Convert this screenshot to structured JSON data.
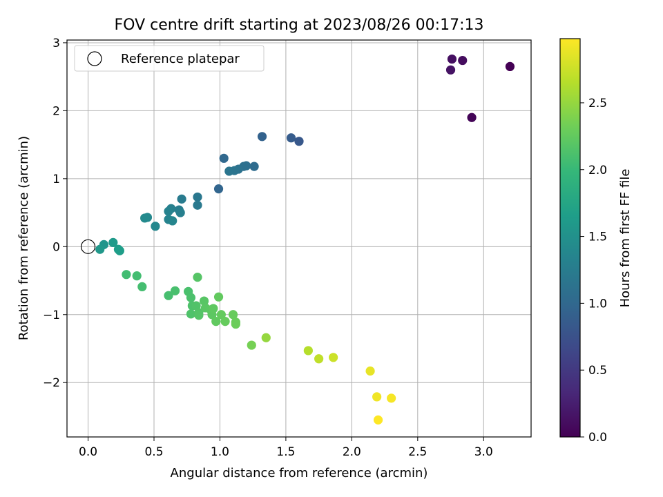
{
  "chart_data": {
    "type": "scatter",
    "title": "FOV centre drift starting at 2023/08/26 00:17:13",
    "xlabel": "Angular distance from reference (arcmin)",
    "ylabel": "Rotation from reference (arcmin)",
    "xlim": [
      -0.16,
      3.36
    ],
    "ylim": [
      -2.8,
      3.04
    ],
    "xticks": [
      "0.0",
      "0.5",
      "1.0",
      "1.5",
      "2.0",
      "2.5",
      "3.0"
    ],
    "xtick_values": [
      0,
      0.5,
      1,
      1.5,
      2,
      2.5,
      3
    ],
    "yticks": [
      "3",
      "2",
      "1",
      "0",
      "−1",
      "−2"
    ],
    "ytick_values": [
      3,
      2,
      1,
      0,
      -1,
      -2
    ],
    "grid": true,
    "legend": {
      "placement": "upper-left",
      "label": "Reference platepar"
    },
    "reference_point": {
      "x": 0.0,
      "y": 0.0
    },
    "colorbar": {
      "label": "Hours from first FF file",
      "range": [
        0.0,
        2.98
      ],
      "ticks": [
        "0.0",
        "0.5",
        "1.0",
        "1.5",
        "2.0",
        "2.5"
      ],
      "tick_values": [
        0,
        0.5,
        1,
        1.5,
        2,
        2.5
      ],
      "colormap": "viridis",
      "colors": [
        "#440154",
        "#482878",
        "#3e4989",
        "#31688e",
        "#26828e",
        "#1f9e89",
        "#35b779",
        "#6ece58",
        "#b5de2b",
        "#fde725"
      ]
    },
    "points": [
      {
        "x": 3.2,
        "y": 2.65,
        "h": 0.0
      },
      {
        "x": 2.91,
        "y": 1.9,
        "h": 0.03
      },
      {
        "x": 2.84,
        "y": 2.74,
        "h": 0.09
      },
      {
        "x": 2.76,
        "y": 2.76,
        "h": 0.12
      },
      {
        "x": 2.75,
        "y": 2.6,
        "h": 0.15
      },
      {
        "x": 1.6,
        "y": 1.55,
        "h": 0.82
      },
      {
        "x": 1.54,
        "y": 1.6,
        "h": 0.87
      },
      {
        "x": 1.32,
        "y": 1.62,
        "h": 0.93
      },
      {
        "x": 0.99,
        "y": 0.85,
        "h": 0.97
      },
      {
        "x": 1.03,
        "y": 1.3,
        "h": 1.0
      },
      {
        "x": 1.26,
        "y": 1.18,
        "h": 1.05
      },
      {
        "x": 1.2,
        "y": 1.19,
        "h": 1.08
      },
      {
        "x": 1.18,
        "y": 1.18,
        "h": 1.1
      },
      {
        "x": 1.14,
        "y": 1.14,
        "h": 1.12
      },
      {
        "x": 1.11,
        "y": 1.12,
        "h": 1.14
      },
      {
        "x": 1.07,
        "y": 1.11,
        "h": 1.16
      },
      {
        "x": 0.83,
        "y": 0.73,
        "h": 1.19
      },
      {
        "x": 0.83,
        "y": 0.61,
        "h": 1.21
      },
      {
        "x": 0.71,
        "y": 0.7,
        "h": 1.24
      },
      {
        "x": 0.69,
        "y": 0.54,
        "h": 1.26
      },
      {
        "x": 0.7,
        "y": 0.5,
        "h": 1.28
      },
      {
        "x": 0.63,
        "y": 0.56,
        "h": 1.3
      },
      {
        "x": 0.61,
        "y": 0.52,
        "h": 1.32
      },
      {
        "x": 0.61,
        "y": 0.4,
        "h": 1.34
      },
      {
        "x": 0.64,
        "y": 0.38,
        "h": 1.36
      },
      {
        "x": 0.51,
        "y": 0.3,
        "h": 1.38
      },
      {
        "x": 0.45,
        "y": 0.43,
        "h": 1.4
      },
      {
        "x": 0.43,
        "y": 0.42,
        "h": 1.42
      },
      {
        "x": 0.12,
        "y": 0.03,
        "h": 1.55
      },
      {
        "x": 0.09,
        "y": -0.04,
        "h": 1.58
      },
      {
        "x": 0.19,
        "y": 0.06,
        "h": 1.61
      },
      {
        "x": 0.23,
        "y": -0.04,
        "h": 1.63
      },
      {
        "x": 0.24,
        "y": -0.06,
        "h": 1.66
      },
      {
        "x": 0.29,
        "y": -0.41,
        "h": 2.06
      },
      {
        "x": 0.37,
        "y": -0.43,
        "h": 2.07
      },
      {
        "x": 0.41,
        "y": -0.59,
        "h": 2.08
      },
      {
        "x": 0.61,
        "y": -0.72,
        "h": 2.09
      },
      {
        "x": 0.66,
        "y": -0.65,
        "h": 2.1
      },
      {
        "x": 0.76,
        "y": -0.66,
        "h": 2.11
      },
      {
        "x": 0.78,
        "y": -0.75,
        "h": 2.12
      },
      {
        "x": 0.79,
        "y": -0.87,
        "h": 2.13
      },
      {
        "x": 0.78,
        "y": -0.99,
        "h": 2.14
      },
      {
        "x": 0.82,
        "y": -0.87,
        "h": 2.15
      },
      {
        "x": 0.84,
        "y": -0.97,
        "h": 2.16
      },
      {
        "x": 0.84,
        "y": -1.01,
        "h": 2.17
      },
      {
        "x": 0.83,
        "y": -0.45,
        "h": 2.18
      },
      {
        "x": 0.88,
        "y": -0.8,
        "h": 2.19
      },
      {
        "x": 0.89,
        "y": -0.9,
        "h": 2.2
      },
      {
        "x": 0.93,
        "y": -0.93,
        "h": 2.21
      },
      {
        "x": 0.94,
        "y": -1.0,
        "h": 2.22
      },
      {
        "x": 0.95,
        "y": -0.91,
        "h": 2.23
      },
      {
        "x": 0.97,
        "y": -1.1,
        "h": 2.24
      },
      {
        "x": 0.99,
        "y": -0.74,
        "h": 2.25
      },
      {
        "x": 1.01,
        "y": -1.0,
        "h": 2.26
      },
      {
        "x": 1.04,
        "y": -1.1,
        "h": 2.27
      },
      {
        "x": 1.1,
        "y": -1.0,
        "h": 2.28
      },
      {
        "x": 1.12,
        "y": -1.11,
        "h": 2.29
      },
      {
        "x": 1.12,
        "y": -1.14,
        "h": 2.3
      },
      {
        "x": 1.24,
        "y": -1.45,
        "h": 2.35
      },
      {
        "x": 1.35,
        "y": -1.34,
        "h": 2.5
      },
      {
        "x": 1.67,
        "y": -1.53,
        "h": 2.65
      },
      {
        "x": 1.75,
        "y": -1.65,
        "h": 2.7
      },
      {
        "x": 1.86,
        "y": -1.63,
        "h": 2.75
      },
      {
        "x": 2.14,
        "y": -1.83,
        "h": 2.88
      },
      {
        "x": 2.19,
        "y": -2.21,
        "h": 2.92
      },
      {
        "x": 2.3,
        "y": -2.23,
        "h": 2.95
      },
      {
        "x": 2.2,
        "y": -2.55,
        "h": 2.98
      }
    ]
  }
}
